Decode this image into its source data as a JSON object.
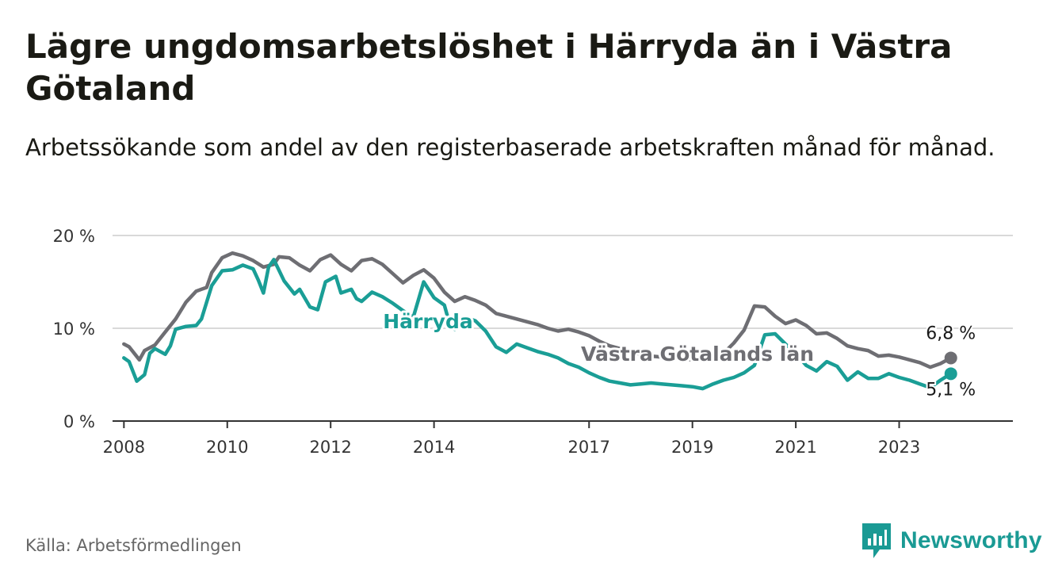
{
  "title": "Lägre ungdomsarbetslöshet i Härryda än i Västra Götaland",
  "subtitle": "Arbetssökande som andel av den registerbaserade arbetskraften månad för månad.",
  "source": "Källa: Arbetsförmedlingen",
  "brand": {
    "name": "Newsworthy",
    "logo_icon": "bar-chart-icon",
    "color": "#1a9a94"
  },
  "chart_data": {
    "type": "line",
    "title": "Lägre ungdomsarbetslöshet i Härryda än i Västra Götaland",
    "xlabel": "",
    "ylabel": "",
    "x_unit": "year",
    "xlim": [
      2007.78,
      2025.2
    ],
    "ylim": [
      0,
      20
    ],
    "yticks": [
      {
        "value": 0,
        "label": "0 %"
      },
      {
        "value": 10,
        "label": "10 %"
      },
      {
        "value": 20,
        "label": "20 %"
      }
    ],
    "xticks": [
      {
        "value": 2008,
        "label": "2008"
      },
      {
        "value": 2010,
        "label": "2010"
      },
      {
        "value": 2012,
        "label": "2012"
      },
      {
        "value": 2014,
        "label": "2014"
      },
      {
        "value": 2017,
        "label": "2017"
      },
      {
        "value": 2019,
        "label": "2019"
      },
      {
        "value": 2021,
        "label": "2021"
      },
      {
        "value": 2023,
        "label": "2023"
      }
    ],
    "grid": true,
    "series": [
      {
        "name": "Västra Götalands län",
        "color": "#6e6e73",
        "end_label": "6,8 %",
        "label_position": "inline",
        "points": [
          [
            2008.0,
            8.3
          ],
          [
            2008.1,
            8.0
          ],
          [
            2008.3,
            6.6
          ],
          [
            2008.4,
            7.6
          ],
          [
            2008.6,
            8.2
          ],
          [
            2008.8,
            9.6
          ],
          [
            2009.0,
            11.0
          ],
          [
            2009.2,
            12.8
          ],
          [
            2009.4,
            14.0
          ],
          [
            2009.6,
            14.4
          ],
          [
            2009.7,
            16.0
          ],
          [
            2009.9,
            17.6
          ],
          [
            2010.1,
            18.1
          ],
          [
            2010.3,
            17.8
          ],
          [
            2010.5,
            17.3
          ],
          [
            2010.7,
            16.6
          ],
          [
            2010.9,
            16.9
          ],
          [
            2011.0,
            17.7
          ],
          [
            2011.2,
            17.6
          ],
          [
            2011.4,
            16.8
          ],
          [
            2011.6,
            16.2
          ],
          [
            2011.8,
            17.4
          ],
          [
            2012.0,
            17.9
          ],
          [
            2012.2,
            16.9
          ],
          [
            2012.4,
            16.2
          ],
          [
            2012.6,
            17.3
          ],
          [
            2012.8,
            17.5
          ],
          [
            2013.0,
            16.9
          ],
          [
            2013.2,
            15.9
          ],
          [
            2013.4,
            14.9
          ],
          [
            2013.6,
            15.7
          ],
          [
            2013.8,
            16.3
          ],
          [
            2014.0,
            15.4
          ],
          [
            2014.2,
            13.9
          ],
          [
            2014.4,
            12.9
          ],
          [
            2014.6,
            13.4
          ],
          [
            2014.8,
            13.0
          ],
          [
            2015.0,
            12.5
          ],
          [
            2015.2,
            11.6
          ],
          [
            2015.4,
            11.3
          ],
          [
            2015.6,
            11.0
          ],
          [
            2015.8,
            10.7
          ],
          [
            2016.0,
            10.4
          ],
          [
            2016.2,
            10.0
          ],
          [
            2016.4,
            9.7
          ],
          [
            2016.6,
            9.9
          ],
          [
            2016.8,
            9.6
          ],
          [
            2017.0,
            9.2
          ],
          [
            2017.2,
            8.6
          ],
          [
            2017.4,
            8.1
          ],
          [
            2017.6,
            7.8
          ],
          [
            2017.8,
            7.5
          ],
          [
            2018.0,
            7.2
          ],
          [
            2018.2,
            7.0
          ],
          [
            2018.4,
            6.9
          ],
          [
            2018.6,
            6.8
          ],
          [
            2018.8,
            6.7
          ],
          [
            2019.0,
            6.6
          ],
          [
            2019.2,
            6.7
          ],
          [
            2019.4,
            6.9
          ],
          [
            2019.6,
            7.3
          ],
          [
            2019.8,
            8.4
          ],
          [
            2020.0,
            9.8
          ],
          [
            2020.2,
            12.4
          ],
          [
            2020.4,
            12.3
          ],
          [
            2020.6,
            11.3
          ],
          [
            2020.8,
            10.5
          ],
          [
            2021.0,
            10.9
          ],
          [
            2021.2,
            10.3
          ],
          [
            2021.4,
            9.4
          ],
          [
            2021.6,
            9.5
          ],
          [
            2021.8,
            8.9
          ],
          [
            2022.0,
            8.1
          ],
          [
            2022.2,
            7.8
          ],
          [
            2022.4,
            7.6
          ],
          [
            2022.6,
            7.0
          ],
          [
            2022.8,
            7.1
          ],
          [
            2023.0,
            6.9
          ],
          [
            2023.2,
            6.6
          ],
          [
            2023.4,
            6.3
          ],
          [
            2023.6,
            5.8
          ],
          [
            2023.8,
            6.2
          ],
          [
            2024.0,
            6.8
          ]
        ]
      },
      {
        "name": "Härryda",
        "color": "#1a9e96",
        "end_label": "5,1 %",
        "label_position": "inline",
        "points": [
          [
            2008.0,
            6.8
          ],
          [
            2008.1,
            6.4
          ],
          [
            2008.25,
            4.3
          ],
          [
            2008.4,
            5.0
          ],
          [
            2008.5,
            7.3
          ],
          [
            2008.6,
            7.8
          ],
          [
            2008.8,
            7.2
          ],
          [
            2008.9,
            8.1
          ],
          [
            2009.0,
            9.9
          ],
          [
            2009.2,
            10.2
          ],
          [
            2009.4,
            10.3
          ],
          [
            2009.5,
            11.0
          ],
          [
            2009.7,
            14.6
          ],
          [
            2009.9,
            16.2
          ],
          [
            2010.1,
            16.3
          ],
          [
            2010.3,
            16.8
          ],
          [
            2010.5,
            16.4
          ],
          [
            2010.6,
            15.2
          ],
          [
            2010.7,
            13.8
          ],
          [
            2010.8,
            16.6
          ],
          [
            2010.9,
            17.4
          ],
          [
            2011.1,
            15.1
          ],
          [
            2011.3,
            13.7
          ],
          [
            2011.4,
            14.2
          ],
          [
            2011.6,
            12.3
          ],
          [
            2011.75,
            12.0
          ],
          [
            2011.9,
            15.0
          ],
          [
            2012.1,
            15.6
          ],
          [
            2012.2,
            13.8
          ],
          [
            2012.4,
            14.2
          ],
          [
            2012.5,
            13.2
          ],
          [
            2012.6,
            12.9
          ],
          [
            2012.8,
            13.9
          ],
          [
            2013.0,
            13.4
          ],
          [
            2013.2,
            12.7
          ],
          [
            2013.4,
            11.9
          ],
          [
            2013.6,
            11.2
          ],
          [
            2013.8,
            15.0
          ],
          [
            2014.0,
            13.3
          ],
          [
            2014.2,
            12.5
          ],
          [
            2014.3,
            10.5
          ],
          [
            2014.4,
            9.9
          ],
          [
            2014.6,
            11.2
          ],
          [
            2014.8,
            10.8
          ],
          [
            2015.0,
            9.7
          ],
          [
            2015.2,
            8.0
          ],
          [
            2015.4,
            7.4
          ],
          [
            2015.6,
            8.3
          ],
          [
            2015.8,
            7.9
          ],
          [
            2016.0,
            7.5
          ],
          [
            2016.2,
            7.2
          ],
          [
            2016.4,
            6.8
          ],
          [
            2016.6,
            6.2
          ],
          [
            2016.8,
            5.8
          ],
          [
            2017.0,
            5.2
          ],
          [
            2017.2,
            4.7
          ],
          [
            2017.4,
            4.3
          ],
          [
            2017.6,
            4.1
          ],
          [
            2017.8,
            3.9
          ],
          [
            2018.0,
            4.0
          ],
          [
            2018.2,
            4.1
          ],
          [
            2018.4,
            4.0
          ],
          [
            2018.6,
            3.9
          ],
          [
            2018.8,
            3.8
          ],
          [
            2019.0,
            3.7
          ],
          [
            2019.2,
            3.5
          ],
          [
            2019.4,
            4.0
          ],
          [
            2019.6,
            4.4
          ],
          [
            2019.8,
            4.7
          ],
          [
            2020.0,
            5.2
          ],
          [
            2020.2,
            6.0
          ],
          [
            2020.4,
            9.3
          ],
          [
            2020.6,
            9.4
          ],
          [
            2020.8,
            8.3
          ],
          [
            2021.0,
            7.3
          ],
          [
            2021.2,
            6.0
          ],
          [
            2021.4,
            5.4
          ],
          [
            2021.6,
            6.4
          ],
          [
            2021.8,
            5.9
          ],
          [
            2022.0,
            4.4
          ],
          [
            2022.2,
            5.3
          ],
          [
            2022.4,
            4.6
          ],
          [
            2022.6,
            4.6
          ],
          [
            2022.8,
            5.1
          ],
          [
            2023.0,
            4.7
          ],
          [
            2023.2,
            4.4
          ],
          [
            2023.4,
            4.0
          ],
          [
            2023.6,
            3.6
          ],
          [
            2023.8,
            4.4
          ],
          [
            2024.0,
            5.1
          ]
        ]
      }
    ]
  }
}
